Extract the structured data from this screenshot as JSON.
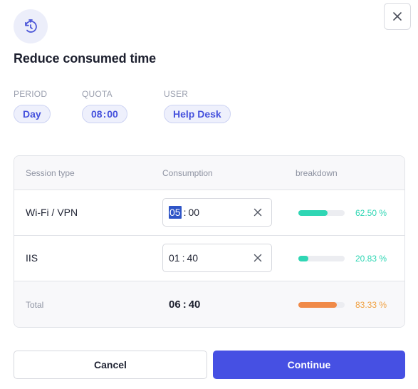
{
  "dialog": {
    "title": "Reduce consumed time",
    "close_icon": "close-icon",
    "header_icon": "timer-reset-icon"
  },
  "meta": {
    "period": {
      "label": "PERIOD",
      "value": "Day"
    },
    "quota": {
      "label": "QUOTA",
      "hours": "08",
      "minutes": "00"
    },
    "user": {
      "label": "USER",
      "value": "Help Desk"
    }
  },
  "table": {
    "headers": {
      "type": "Session type",
      "consumption": "Consumption",
      "breakdown": "breakdown"
    },
    "rows": [
      {
        "type": "Wi-Fi / VPN",
        "hours": "05",
        "minutes": "00",
        "share": 0.625,
        "percent": "62.50 %",
        "color": "#2fd6b4",
        "selected_segment": "hours"
      },
      {
        "type": "IIS",
        "hours": "01",
        "minutes": "40",
        "share": 0.2083,
        "percent": "20.83 %",
        "color": "#2fd6b4"
      }
    ],
    "total": {
      "label": "Total",
      "hours": "06",
      "minutes": "40",
      "share": 0.8333,
      "percent": "83.33 %",
      "color": "#f08a48",
      "percent_color": "#f0a040"
    }
  },
  "buttons": {
    "cancel": "Cancel",
    "continue": "Continue"
  },
  "colors": {
    "accent": "#4650e3",
    "teal": "#2fd6b4",
    "orange": "#f08a48"
  }
}
